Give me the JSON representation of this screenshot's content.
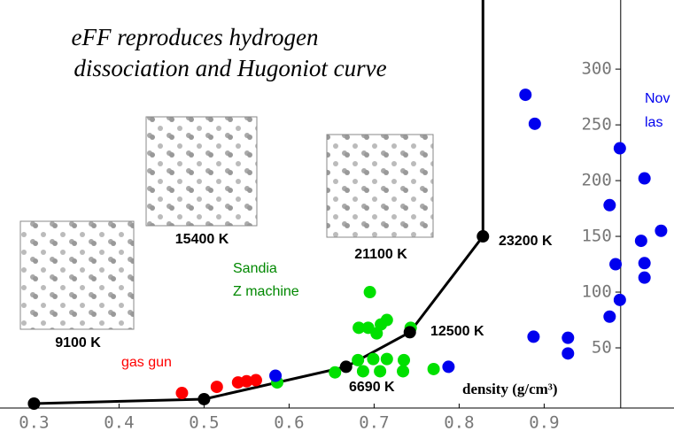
{
  "chart_data": {
    "type": "scatter",
    "title": [
      "eFF reproduces hydrogen",
      "dissociation and Hugoniot curve"
    ],
    "x_label": "density (g/cm³)",
    "xlim": [
      0.26,
      1.05
    ],
    "ylim": [
      -5,
      362
    ],
    "xticks": [
      0.3,
      0.4,
      0.5,
      0.6,
      0.7,
      0.8,
      0.9
    ],
    "yticks": [
      50,
      100,
      150,
      200,
      250,
      300
    ],
    "y_axis_at": 0.99,
    "annotations": [
      "9100 K",
      "15400 K",
      "21100 K",
      "23200 K",
      "12500 K",
      "6690 K",
      "gas gun",
      "Sandia",
      "Z machine",
      "Nov",
      "las"
    ],
    "series": [
      {
        "style": "line",
        "color": "#000000",
        "x": [
          0.3,
          0.5,
          0.667,
          0.742,
          0.828,
          0.828
        ],
        "values": [
          0,
          4,
          33,
          64,
          150,
          362
        ]
      },
      {
        "style": "points",
        "color": "#ff0000",
        "x": [
          0.474,
          0.515,
          0.54,
          0.55,
          0.561
        ],
        "values": [
          9.5,
          15,
          19,
          20,
          21
        ]
      },
      {
        "style": "points",
        "color": "#00e000",
        "x": [
          0.586,
          0.654,
          0.681,
          0.695,
          0.682,
          0.693,
          0.703,
          0.708,
          0.715,
          0.687,
          0.699,
          0.715,
          0.707,
          0.734,
          0.735,
          0.743,
          0.77
        ],
        "values": [
          19,
          28,
          39,
          100,
          68,
          68,
          63,
          71,
          75,
          29,
          40,
          40,
          29,
          29,
          39,
          68,
          31
        ]
      },
      {
        "style": "points",
        "color": "#0000ee",
        "x": [
          0.584,
          0.7875,
          0.878,
          0.889,
          0.989,
          0.977,
          1.018,
          0.984,
          1.014,
          1.0375,
          1.018,
          1.018,
          0.989,
          0.977,
          0.8875,
          0.928,
          0.928
        ],
        "values": [
          25,
          33,
          277,
          251,
          229,
          178,
          202,
          125,
          146,
          155,
          126,
          113,
          93,
          78,
          60,
          59,
          45
        ]
      },
      {
        "style": "points",
        "color": "#000000",
        "x": [
          0.3,
          0.5,
          0.667,
          0.742,
          0.828
        ],
        "values": [
          0,
          4,
          33,
          64,
          150
        ]
      }
    ]
  }
}
